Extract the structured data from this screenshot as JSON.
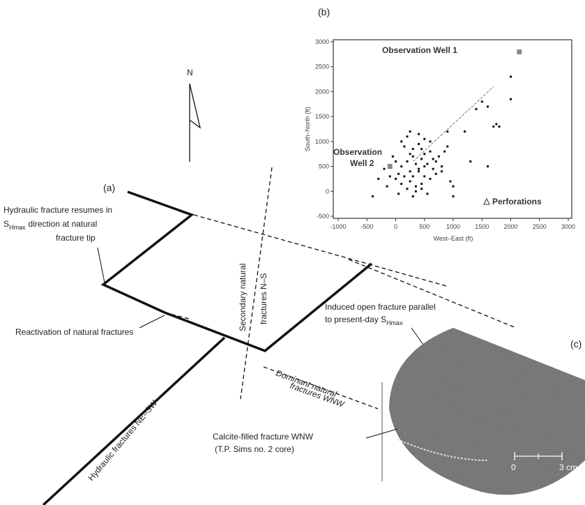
{
  "diagram": {
    "panel_a": {
      "label": "(a)",
      "north": "N",
      "resume_note": {
        "line1": "Hydraulic fracture resumes in",
        "s": "S",
        "sub": "Hmax",
        "rest": "direction at natural",
        "line3": "fracture tip"
      },
      "secondary": [
        "Secondary natural",
        "fractures N–S"
      ],
      "induced": {
        "line1": "Induced open fracture parallel",
        "line2": "to present-day S",
        "sub": "Hmax"
      },
      "reactivation": "Reactivation of natural fractures",
      "dominant": [
        "Dominant natural",
        "fractures WNW"
      ],
      "hydraulic": "Hydraulic fractures NE–SW"
    },
    "panel_b": {
      "label": "(b)"
    },
    "panel_c": {
      "label": "(c)",
      "calcite": [
        "Calcite-filled fracture WNW",
        "(T.P. Sims no. 2 core)"
      ],
      "scale": [
        "0",
        "3 cm"
      ]
    }
  },
  "chart_data": {
    "type": "scatter",
    "xlabel": "West–East (ft)",
    "ylabel": "South–North (ft)",
    "xlim": [
      -1000,
      3000
    ],
    "ylim": [
      -500,
      3000
    ],
    "xticks": [
      -1000,
      -500,
      0,
      500,
      1000,
      1500,
      2000,
      2500,
      3000
    ],
    "yticks": [
      -500,
      0,
      500,
      1000,
      1500,
      2000,
      2500,
      3000
    ],
    "x": [
      100,
      200,
      300,
      400,
      500,
      600,
      150,
      250,
      350,
      450,
      550,
      650,
      50,
      -50,
      0,
      100,
      200,
      300,
      400,
      500,
      700,
      800,
      350,
      450,
      250,
      150,
      600,
      500,
      400,
      300,
      200,
      100,
      0,
      -100,
      -200,
      -150,
      750,
      850,
      900,
      950,
      1000,
      700,
      600,
      550,
      450,
      350,
      250,
      650,
      800,
      300,
      400,
      500,
      1500,
      1600,
      1700,
      1800,
      2000,
      2000,
      1400,
      1200,
      1300,
      1600,
      1750,
      -400,
      1000,
      900,
      -300,
      50,
      250,
      450
    ],
    "y": [
      500,
      600,
      700,
      400,
      300,
      800,
      900,
      200,
      100,
      650,
      550,
      450,
      350,
      700,
      250,
      1000,
      1100,
      850,
      950,
      750,
      600,
      500,
      0,
      150,
      400,
      300,
      1000,
      1050,
      1150,
      -100,
      50,
      150,
      600,
      300,
      450,
      100,
      700,
      800,
      900,
      200,
      100,
      350,
      250,
      -50,
      850,
      550,
      750,
      650,
      400,
      300,
      450,
      500,
      1800,
      1700,
      1300,
      1300,
      2300,
      1850,
      1650,
      1200,
      600,
      500,
      1350,
      -100,
      -100,
      1200,
      250,
      -50,
      1200,
      50
    ],
    "trend": {
      "x": [
        300,
        1700
      ],
      "y": [
        600,
        2100
      ]
    },
    "markers": [
      {
        "label": [
          "Observation Well 1"
        ],
        "x": 2150,
        "y": 2800
      },
      {
        "label": [
          "Observation",
          "Well 2"
        ],
        "x": -100,
        "y": 500
      }
    ],
    "legend_label": "Perforations"
  }
}
